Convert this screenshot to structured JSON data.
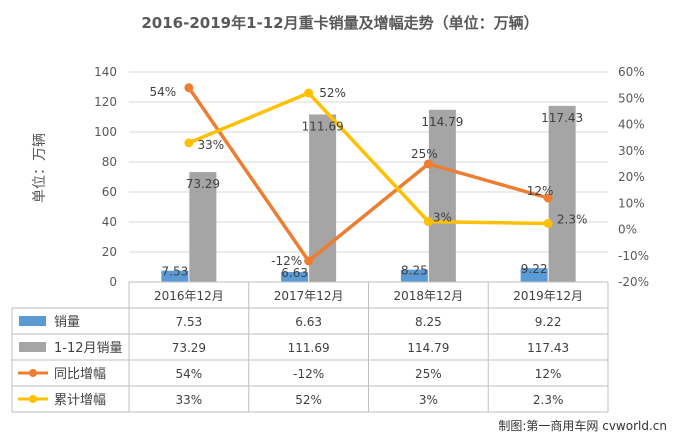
{
  "chart_data": {
    "type": "bar",
    "title": "2016-2019年1-12月重卡销量及增幅走势（单位：万辆）",
    "ylabel": "单位：万辆",
    "categories": [
      "2016年12月",
      "2017年12月",
      "2018年12月",
      "2019年12月"
    ],
    "ylim": [
      0,
      140
    ],
    "y_ticks": [
      "0",
      "20",
      "40",
      "60",
      "80",
      "100",
      "120",
      "140"
    ],
    "y2lim": [
      -20,
      60
    ],
    "y2_ticks": [
      "-20%",
      "-10%",
      "0%",
      "10%",
      "20%",
      "30%",
      "40%",
      "50%",
      "60%"
    ],
    "legend": "data-table",
    "series": [
      {
        "name": "销量",
        "type": "bar",
        "axis": "left",
        "color": "#5b9bd5",
        "values": [
          7.53,
          6.63,
          8.25,
          9.22
        ],
        "labels": [
          "7.53",
          "6.63",
          "8.25",
          "9.22"
        ]
      },
      {
        "name": "1-12月销量",
        "type": "bar",
        "axis": "left",
        "color": "#a5a5a5",
        "values": [
          73.29,
          111.69,
          114.79,
          117.43
        ],
        "labels": [
          "73.29",
          "111.69",
          "114.79",
          "117.43"
        ]
      },
      {
        "name": "同比增幅",
        "type": "line",
        "axis": "right",
        "color": "#ed7d31",
        "values": [
          54,
          -12,
          25,
          12
        ],
        "labels": [
          "54%",
          "-12%",
          "25%",
          "12%"
        ]
      },
      {
        "name": "累计增幅",
        "type": "line",
        "axis": "right",
        "color": "#ffc000",
        "values": [
          33,
          52,
          3,
          2.3
        ],
        "labels": [
          "33%",
          "52%",
          "3%",
          "2.3%"
        ]
      }
    ]
  },
  "watermark": "制图:第一商用车网 cvworld.cn"
}
